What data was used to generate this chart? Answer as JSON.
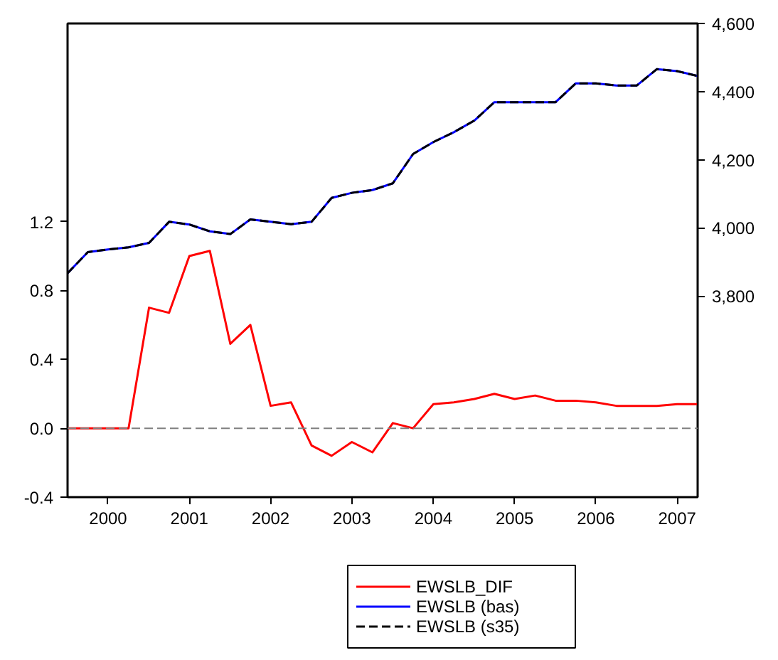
{
  "chart_data": {
    "type": "line",
    "x": [
      "2000-01",
      "2000-04",
      "2000-07",
      "2000-10",
      "2001-01",
      "2001-04",
      "2001-07",
      "2001-10",
      "2002-01",
      "2002-04",
      "2002-07",
      "2002-10",
      "2003-01",
      "2003-04",
      "2003-07",
      "2003-10",
      "2004-01",
      "2004-04",
      "2004-07",
      "2004-10",
      "2005-01",
      "2005-04",
      "2005-07",
      "2005-10",
      "2006-01",
      "2006-04",
      "2006-07",
      "2006-10",
      "2007-01",
      "2007-04",
      "2007-07",
      "2007-10"
    ],
    "series": [
      {
        "name": "EWSLB_DIF",
        "color": "#ff0000",
        "values": [
          0,
          0,
          0,
          0,
          0.7,
          0.67,
          1.0,
          1.03,
          0.49,
          0.6,
          0.13,
          0.15,
          -0.1,
          -0.16,
          -0.08,
          -0.14,
          0.03,
          0.0,
          0.14,
          0.15,
          0.17,
          0.2,
          0.17,
          0.19,
          0.16,
          0.16,
          0.15,
          0.13,
          0.13,
          0.13,
          0.14,
          0.14
        ]
      },
      {
        "name": "EWSLB (bas)",
        "color": "#0000ff",
        "axis": "y2",
        "values": [
          3867,
          3929,
          3937,
          3943,
          3956,
          4018,
          4010,
          3990,
          3982,
          4025,
          4018,
          4011,
          4018,
          4088,
          4103,
          4111,
          4131,
          4217,
          4252,
          4281,
          4315,
          4369,
          4369,
          4369,
          4369,
          4424,
          4424,
          4418,
          4418,
          4466,
          4460,
          4446
        ]
      },
      {
        "name": "EWSLB (s35)",
        "color": "#000000",
        "axis": "y2",
        "line_style": "dashed",
        "values": [
          3867,
          3929,
          3937,
          3943,
          3956,
          4018,
          4010,
          3990,
          3982,
          4025,
          4018,
          4011,
          4018,
          4088,
          4103,
          4111,
          4131,
          4217,
          4252,
          4281,
          4315,
          4369,
          4369,
          4369,
          4369,
          4424,
          4424,
          4418,
          4418,
          4466,
          4460,
          4446
        ]
      }
    ],
    "xlim": [
      "2000-01",
      "2007-10"
    ],
    "xticks": [
      {
        "value": "2000-07",
        "label": "2000"
      },
      {
        "value": "2001-07",
        "label": "2001"
      },
      {
        "value": "2002-07",
        "label": "2002"
      },
      {
        "value": "2003-07",
        "label": "2003"
      },
      {
        "value": "2004-07",
        "label": "2004"
      },
      {
        "value": "2005-07",
        "label": "2005"
      },
      {
        "value": "2006-07",
        "label": "2006"
      },
      {
        "value": "2007-07",
        "label": "2007"
      }
    ],
    "ylim": [
      -0.4,
      2.35
    ],
    "yticks": [
      {
        "value": -0.4,
        "label": "-0.4"
      },
      {
        "value": 0,
        "label": "0.0"
      },
      {
        "value": 0.4,
        "label": "0.4"
      },
      {
        "value": 0.8,
        "label": "0.8"
      },
      {
        "value": 1.2,
        "label": "1.2"
      }
    ],
    "y2lim": [
      3210,
      4600
    ],
    "y2ticks": [
      {
        "value": 3800,
        "label": "3,800"
      },
      {
        "value": 4000,
        "label": "4,000"
      },
      {
        "value": 4200,
        "label": "4,200"
      },
      {
        "value": 4400,
        "label": "4,400"
      },
      {
        "value": 4600,
        "label": "4,600"
      }
    ],
    "ref_lines": [
      {
        "axis": "y",
        "value": 0,
        "color": "#808080",
        "line_style": "dashed"
      }
    ],
    "grid": false,
    "legend": "bottom"
  }
}
